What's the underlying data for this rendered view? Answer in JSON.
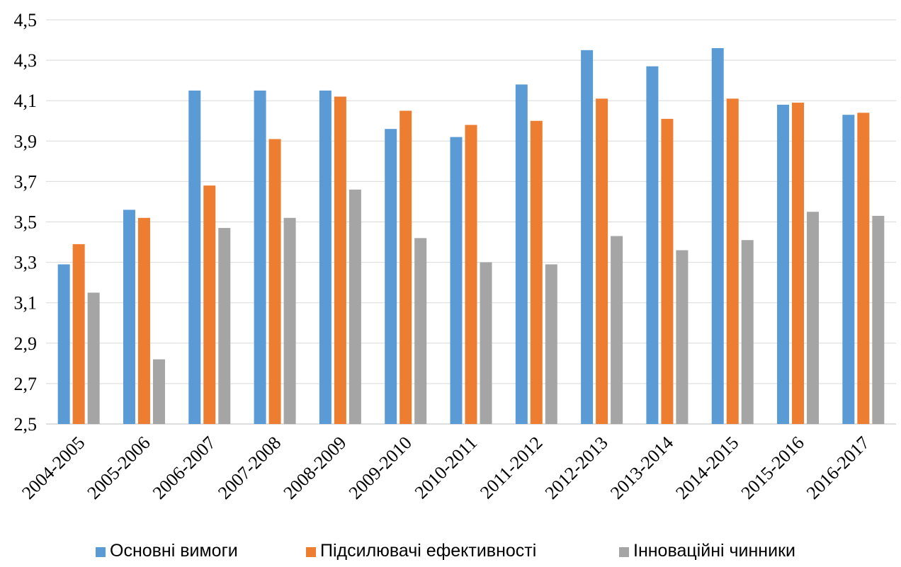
{
  "chart_data": {
    "type": "bar",
    "categories": [
      "2004-2005",
      "2005-2006",
      "2006-2007",
      "2007-2008",
      "2008-2009",
      "2009-2010",
      "2010-2011",
      "2011-2012",
      "2012-2013",
      "2013-2014",
      "2014-2015",
      "2015-2016",
      "2016-2017"
    ],
    "series": [
      {
        "name": "Основні вимоги",
        "color": "#5b9bd5",
        "values": [
          3.29,
          3.56,
          4.15,
          4.15,
          4.15,
          3.96,
          3.92,
          4.18,
          4.35,
          4.27,
          4.36,
          4.08,
          4.03
        ]
      },
      {
        "name": "Підсилювачі ефективності",
        "color": "#ed7d31",
        "values": [
          3.39,
          3.52,
          3.68,
          3.91,
          4.12,
          4.05,
          3.98,
          4.0,
          4.11,
          4.01,
          4.11,
          4.09,
          4.04
        ]
      },
      {
        "name": "Інноваційні чинники",
        "color": "#a5a5a5",
        "values": [
          3.15,
          2.82,
          3.47,
          3.52,
          3.66,
          3.42,
          3.3,
          3.29,
          3.43,
          3.36,
          3.41,
          3.55,
          3.53
        ]
      }
    ],
    "ylim": [
      2.5,
      4.5
    ],
    "yticks": [
      "2,5",
      "2,7",
      "2,9",
      "3,1",
      "3,3",
      "3,5",
      "3,7",
      "3,9",
      "4,1",
      "4,3",
      "4,5"
    ],
    "grid": true,
    "legend_position": "bottom",
    "title": "",
    "xlabel": "",
    "ylabel": ""
  }
}
